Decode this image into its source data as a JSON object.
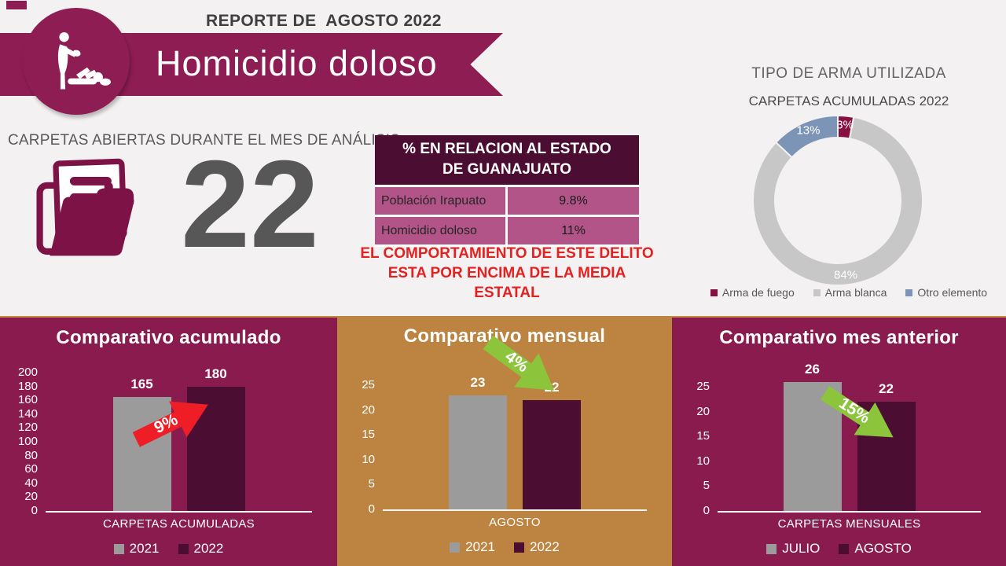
{
  "header": {
    "report_label": "REPORTE DE  AGOSTO 2022",
    "title": "Homicidio doloso"
  },
  "open_cases": {
    "label": "CARPETAS ABIERTAS DURANTE EL MES DE ANÁLISIS",
    "value": "22"
  },
  "state_table": {
    "title_line1": "% EN RELACION AL ESTADO",
    "title_line2": "DE GUANAJUATO",
    "rows": [
      {
        "label": "Población Irapuato",
        "value": "9.8%"
      },
      {
        "label": "Homicidio doloso",
        "value": "11%"
      }
    ],
    "note_line1": "EL COMPORTAMIENTO DE ESTE DELITO",
    "note_line2": "ESTA POR ENCIMA DE LA MEDIA ESTATAL"
  },
  "colors": {
    "background": "#F3F1F1",
    "maroon": "#8E1D53",
    "panel_maroon": "#8A1B4E",
    "dark_maroon": "#4B0D32",
    "gold": "#BC8440",
    "tan_border": "#C18A3D",
    "gray_bar": "#9C9B9B",
    "red_note": "#E32121",
    "red_arrow": "#EF1D25",
    "green_arrow": "#8CC43C",
    "table_row_pink": "#B25487",
    "text_gray": "#595959"
  },
  "chart_data": [
    {
      "id": "arma-donut",
      "type": "donut",
      "title": "TIPO DE ARMA UTILIZADA",
      "subtitle": "CARPETAS ACUMULADAS 2022",
      "legend_position": "bottom",
      "slices": [
        {
          "label": "Arma de fuego",
          "value": 3,
          "display": "3%",
          "color": "#871040",
          "label_angle": 5.4
        },
        {
          "label": "Arma blanca",
          "value": 84,
          "display": "84%",
          "color": "#C8C7C7",
          "label_angle": 174
        },
        {
          "label": "Otro elemento",
          "value": 13,
          "display": "13%",
          "color": "#7C95B6",
          "label_angle": 337
        }
      ]
    },
    {
      "id": "acumulado",
      "type": "bar",
      "title": "Comparativo acumulado",
      "xlabel": "CARPETAS ACUMULADAS",
      "panel_color": "#8A1B4E",
      "ylim": [
        0,
        200
      ],
      "yticks": [
        0,
        20,
        40,
        60,
        80,
        100,
        120,
        140,
        160,
        180,
        200
      ],
      "categories": [
        "2021",
        "2022"
      ],
      "series": [
        {
          "name": "2021",
          "value": 165,
          "color": "#9C9B9B"
        },
        {
          "name": "2022",
          "value": 180,
          "color": "#4B0D32"
        }
      ],
      "change": {
        "label": "9%",
        "direction": "up",
        "color": "#EF1D25"
      }
    },
    {
      "id": "mensual",
      "type": "bar",
      "title": "Comparativo mensual",
      "xlabel": "AGOSTO",
      "panel_color": "#BC8440",
      "ylim": [
        0,
        25
      ],
      "yticks": [
        0,
        5,
        10,
        15,
        20,
        25
      ],
      "categories": [
        "2021",
        "2022"
      ],
      "series": [
        {
          "name": "2021",
          "value": 23,
          "color": "#9C9B9B"
        },
        {
          "name": "2022",
          "value": 22,
          "color": "#4B0D32"
        }
      ],
      "change": {
        "label": "4%",
        "direction": "down",
        "color": "#8CC43C"
      }
    },
    {
      "id": "mes-anterior",
      "type": "bar",
      "title": "Comparativo mes anterior",
      "xlabel": "CARPETAS MENSUALES",
      "panel_color": "#8A1B4E",
      "ylim": [
        0,
        25
      ],
      "yticks": [
        0,
        5,
        10,
        15,
        20,
        25
      ],
      "categories": [
        "JULIO",
        "AGOSTO"
      ],
      "series": [
        {
          "name": "JULIO",
          "value": 26,
          "color": "#9C9B9B"
        },
        {
          "name": "AGOSTO",
          "value": 22,
          "color": "#4B0D32"
        }
      ],
      "change": {
        "label": "15%",
        "direction": "down",
        "color": "#8CC43C"
      }
    }
  ]
}
